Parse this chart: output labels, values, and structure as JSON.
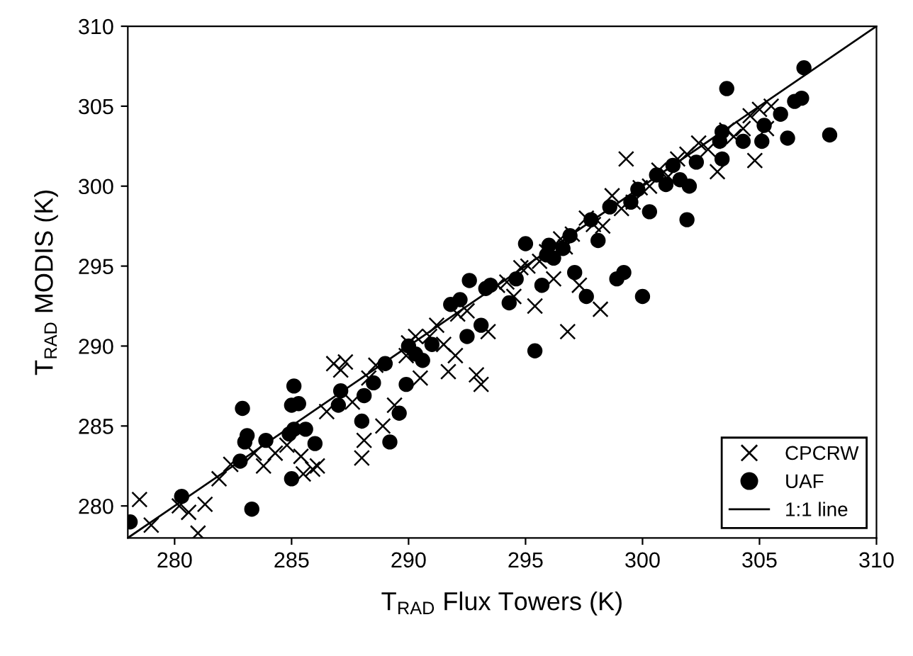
{
  "chart_data": {
    "type": "scatter",
    "xlabel": "T$_{RAD}$ Flux Towers (K)",
    "ylabel": "T$_{RAD}$ MODIS (K)",
    "xlim": [
      278,
      310
    ],
    "ylim": [
      278,
      310
    ],
    "xticks": [
      280,
      285,
      290,
      295,
      300,
      305,
      310
    ],
    "yticks": [
      280,
      285,
      290,
      295,
      300,
      305,
      310
    ],
    "grid": false,
    "legend": "bottom right",
    "series": [
      {
        "name": "CPCRW",
        "marker": "cross",
        "color": "#000000",
        "x": [
          278.5,
          279.0,
          280.2,
          280.6,
          281.0,
          281.3,
          281.9,
          282.4,
          283.4,
          283.8,
          284.3,
          284.8,
          285.4,
          285.5,
          285.9,
          286.1,
          286.5,
          286.8,
          287.3,
          287.1,
          288.0,
          288.1,
          288.3,
          288.6,
          288.9,
          289.4,
          289.9,
          290.3,
          290.5,
          290.9,
          291.2,
          291.5,
          291.7,
          292.1,
          292.5,
          292.9,
          293.1,
          293.4,
          293.8,
          294.2,
          294.5,
          294.8,
          295.1,
          295.4,
          295.6,
          295.9,
          296.2,
          296.5,
          296.7,
          297.0,
          297.3,
          297.6,
          297.9,
          298.2,
          298.3,
          298.7,
          299.1,
          299.3,
          299.6,
          299.9,
          300.3,
          300.7,
          301.1,
          301.5,
          301.9,
          302.4,
          302.8,
          303.2,
          303.6,
          303.9,
          304.3,
          304.6,
          304.8,
          305.0,
          305.3,
          305.5,
          296.8,
          290.0,
          292.0,
          287.6
        ],
        "values": [
          280.4,
          278.8,
          280.0,
          279.6,
          278.3,
          280.1,
          281.7,
          282.6,
          283.3,
          282.5,
          283.3,
          283.8,
          283.1,
          282.0,
          282.3,
          282.5,
          285.9,
          288.9,
          289.0,
          288.5,
          283.0,
          284.1,
          288.0,
          288.8,
          285.0,
          286.3,
          289.4,
          290.6,
          288.0,
          290.6,
          291.3,
          290.1,
          288.4,
          292.0,
          292.2,
          288.2,
          287.6,
          290.9,
          293.8,
          294.0,
          293.1,
          294.9,
          295.0,
          292.5,
          295.3,
          295.9,
          294.2,
          296.7,
          296.2,
          297.0,
          293.8,
          298.0,
          297.6,
          292.3,
          297.5,
          299.4,
          298.6,
          301.7,
          299.0,
          299.9,
          300.0,
          301.0,
          300.6,
          301.7,
          302.0,
          302.7,
          302.3,
          300.9,
          303.5,
          303.1,
          303.6,
          304.4,
          301.6,
          304.8,
          303.6,
          305.0,
          290.9,
          290.2,
          289.4,
          286.5
        ]
      },
      {
        "name": "UAF",
        "marker": "circle",
        "color": "#000000",
        "x": [
          278.1,
          280.3,
          283.3,
          282.9,
          283.0,
          283.1,
          283.9,
          282.8,
          285.1,
          285.0,
          285.3,
          285.1,
          284.9,
          285.6,
          285.0,
          286.0,
          287.1,
          287.0,
          288.1,
          288.0,
          288.5,
          289.2,
          289.6,
          289.0,
          290.0,
          290.3,
          289.9,
          290.6,
          291.0,
          291.8,
          292.2,
          292.5,
          292.6,
          293.3,
          293.5,
          293.1,
          294.3,
          294.6,
          295.0,
          295.4,
          295.7,
          295.9,
          296.0,
          296.2,
          296.6,
          296.9,
          297.1,
          297.6,
          297.8,
          298.1,
          298.6,
          298.9,
          299.2,
          299.5,
          299.8,
          300.0,
          300.3,
          300.6,
          301.0,
          301.3,
          301.9,
          302.0,
          302.3,
          303.3,
          303.4,
          303.6,
          303.4,
          304.3,
          305.1,
          305.2,
          305.9,
          306.2,
          306.5,
          306.8,
          306.9,
          308.0,
          301.6
        ],
        "values": [
          279.0,
          280.6,
          279.8,
          286.1,
          284.0,
          284.4,
          284.1,
          282.8,
          287.5,
          286.3,
          286.4,
          284.8,
          284.5,
          284.8,
          281.7,
          283.9,
          287.2,
          286.3,
          286.9,
          285.3,
          287.7,
          284.0,
          285.8,
          288.9,
          290.0,
          289.5,
          287.6,
          289.1,
          290.1,
          292.6,
          292.9,
          290.6,
          294.1,
          293.6,
          293.8,
          291.3,
          292.7,
          294.2,
          296.4,
          289.7,
          293.8,
          295.7,
          296.3,
          295.5,
          296.1,
          296.9,
          294.6,
          293.1,
          297.9,
          296.6,
          298.7,
          294.2,
          294.6,
          299.0,
          299.8,
          293.1,
          298.4,
          300.7,
          300.1,
          301.3,
          297.9,
          300.0,
          301.5,
          302.8,
          303.4,
          306.1,
          301.7,
          302.8,
          302.8,
          303.8,
          304.5,
          303.0,
          305.3,
          305.5,
          307.4,
          303.2,
          300.4
        ]
      },
      {
        "name": "1:1 line",
        "type": "line",
        "marker": "none",
        "line_style": "solid",
        "color": "#000000",
        "x": [
          278,
          310
        ],
        "values": [
          278,
          310
        ]
      }
    ]
  }
}
